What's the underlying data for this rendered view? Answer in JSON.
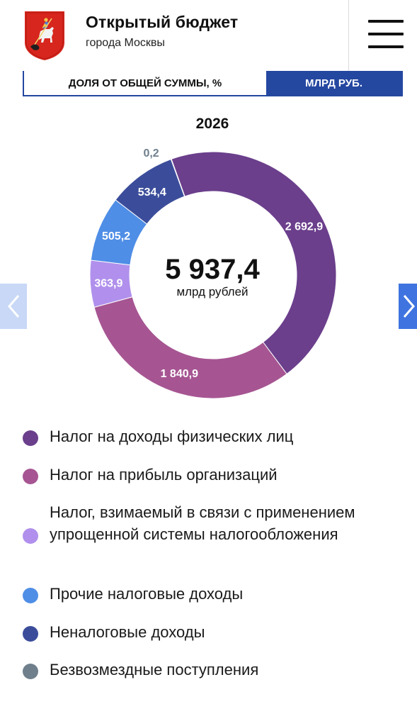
{
  "header": {
    "title": "Открытый бюджет",
    "subtitle": "города Москвы",
    "logo_icon": "moscow-coat-of-arms",
    "menu_icon": "hamburger-menu-icon"
  },
  "toggle": {
    "share_label": "ДОЛЯ ОТ ОБЩЕЙ СУММЫ, %",
    "absolute_label": "МЛРД РУБ.",
    "active": "absolute",
    "active_color": "#2447a0"
  },
  "year": "2026",
  "chart_center": {
    "total": "5 937,4",
    "unit": "млрд рублей"
  },
  "chart_data": {
    "type": "pie",
    "title": "2026",
    "unit": "млрд рублей",
    "total": 5937.4,
    "categories": [
      "Налог на доходы физических лиц",
      "Налог на прибыль организаций",
      "Налог, взимаемый в связи с применением упрощенной системы налогообложения",
      "Прочие налоговые доходы",
      "Неналоговые доходы",
      "Безвозмездные поступления"
    ],
    "values": [
      2692.9,
      1840.9,
      363.9,
      505.2,
      534.4,
      0.2
    ],
    "value_labels": [
      "2 692,9",
      "1 840,9",
      "363,9",
      "505,2",
      "534,4",
      "0,2"
    ],
    "colors": [
      "#6b3f8c",
      "#a65592",
      "#b090ec",
      "#4f8ee6",
      "#3b4d9a",
      "#6f7f8c"
    ],
    "style": "donut",
    "legend_position": "bottom"
  },
  "legend": [
    {
      "label": "Налог на доходы физических лиц"
    },
    {
      "label": "Налог на прибыль организаций"
    },
    {
      "label": "Налог, взимаемый в связи с применением упрощенной системы налогообложения"
    },
    {
      "label": "Прочие налоговые доходы"
    },
    {
      "label": "Неналоговые доходы"
    },
    {
      "label": "Безвозмездные поступления"
    }
  ],
  "nav": {
    "prev_icon": "chevron-left-icon",
    "next_icon": "chevron-right-icon"
  }
}
